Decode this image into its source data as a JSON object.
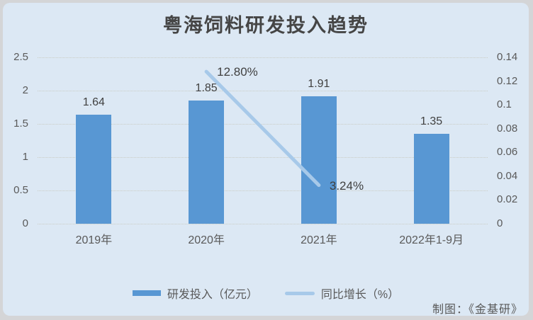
{
  "chart_data": {
    "type": "bar",
    "title": "粤海饲料研发投入趋势",
    "categories": [
      "2019年",
      "2020年",
      "2021年",
      "2022年1-9月"
    ],
    "series": [
      {
        "name": "研发投入（亿元）",
        "type": "bar",
        "axis": "left",
        "values": [
          1.64,
          1.85,
          1.91,
          1.35
        ],
        "data_labels": [
          "1.64",
          "1.85",
          "1.91",
          "1.35"
        ],
        "color": "#5897d3"
      },
      {
        "name": "同比增长（%）",
        "type": "line",
        "axis": "right",
        "values": [
          null,
          0.128,
          0.0324,
          null
        ],
        "data_labels": [
          null,
          "12.80%",
          "3.24%",
          null
        ],
        "color": "#a7c9e9"
      }
    ],
    "left_axis": {
      "min": 0,
      "max": 2.5,
      "ticks": [
        "2.5",
        "2",
        "1.5",
        "1",
        "0.5",
        "0"
      ]
    },
    "right_axis": {
      "min": 0,
      "max": 0.14,
      "ticks": [
        "0.14",
        "0.12",
        "0.1",
        "0.08",
        "0.06",
        "0.04",
        "0.02",
        "0"
      ]
    },
    "grid": true,
    "legend_position": "bottom"
  },
  "credit": "制图：《金基研》",
  "colors": {
    "panel_background": "#dce8f4",
    "outer_background": "#d4d5d7",
    "bar": "#5897d3",
    "line": "#a7c9e9",
    "gridline": "#c9c9bf",
    "title_text": "#454545",
    "axis_text": "#595959",
    "data_label_text": "#404040"
  }
}
